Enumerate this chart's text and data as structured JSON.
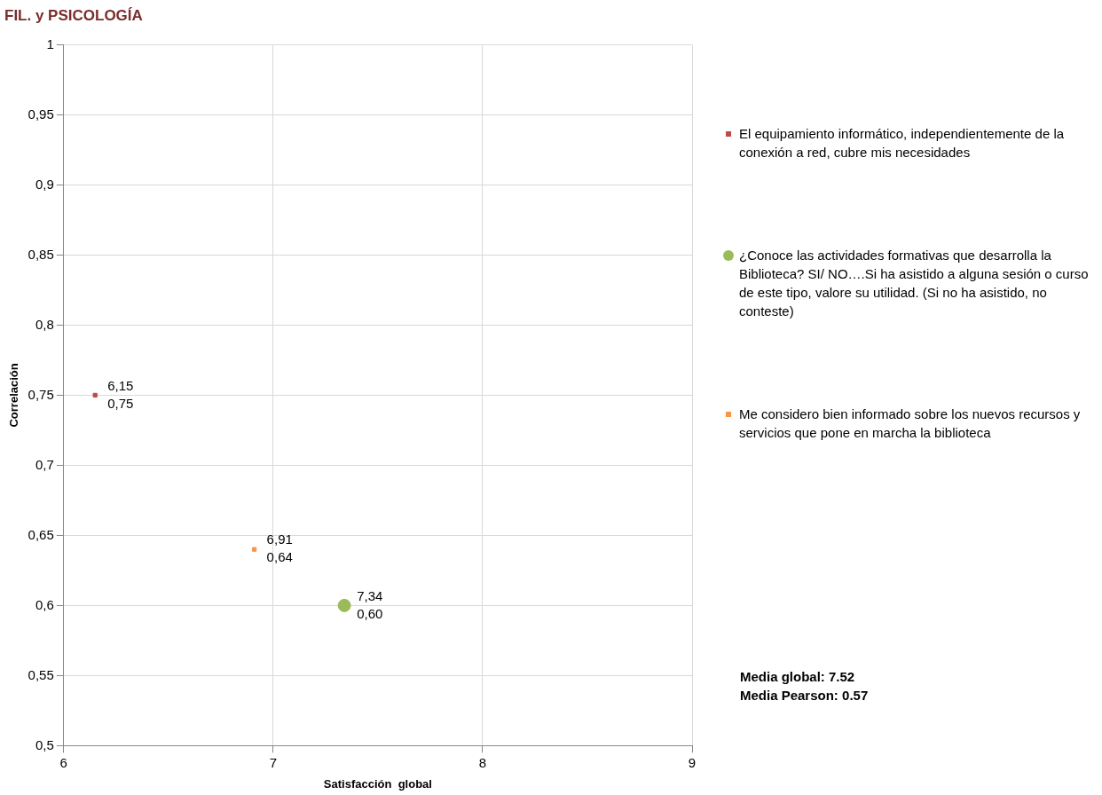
{
  "chart_data": {
    "type": "scatter",
    "title": "FIL. y PSICOLOGÍA",
    "xlabel": "Satisfacción  global",
    "ylabel": "Correlación",
    "xlim": [
      6,
      9
    ],
    "xticks": [
      6,
      7,
      8,
      9
    ],
    "ylim": [
      0.5,
      1
    ],
    "yticks": [
      {
        "value": 0.5,
        "label": "0,5"
      },
      {
        "value": 0.55,
        "label": "0,55"
      },
      {
        "value": 0.6,
        "label": "0,6"
      },
      {
        "value": 0.65,
        "label": "0,65"
      },
      {
        "value": 0.7,
        "label": "0,7"
      },
      {
        "value": 0.75,
        "label": "0,75"
      },
      {
        "value": 0.8,
        "label": "0,8"
      },
      {
        "value": 0.85,
        "label": "0,85"
      },
      {
        "value": 0.9,
        "label": "0,9"
      },
      {
        "value": 0.95,
        "label": "0,95"
      },
      1
    ],
    "grid": true,
    "legend": "right",
    "series": [
      {
        "name": "El equipamiento informático, independientemente de la conexión a red, cubre mis necesidades",
        "color": "#be4b48",
        "marker": "square",
        "x": [
          6.15
        ],
        "values": [
          0.75
        ],
        "value_labels": [
          "6,15\n0,75"
        ]
      },
      {
        "name": "¿Conoce las actividades formativas que desarrolla la Biblioteca? SI/ NO….Si ha asistido a alguna sesión o curso de este tipo, valore su utilidad. (Si no ha asistido, no conteste)",
        "color": "#9bbb59",
        "marker": "circle",
        "x": [
          7.34
        ],
        "values": [
          0.6
        ],
        "value_labels": [
          "7,34\n0,60"
        ]
      },
      {
        "name": "Me considero bien informado sobre los nuevos recursos y servicios que pone en marcha la biblioteca",
        "color": "#f79646",
        "marker": "square",
        "x": [
          6.91
        ],
        "values": [
          0.64
        ],
        "value_labels": [
          "6,91\n0,64"
        ]
      }
    ],
    "annotations": [
      "Media global: 7.52",
      "Media Pearson: 0.57"
    ]
  }
}
